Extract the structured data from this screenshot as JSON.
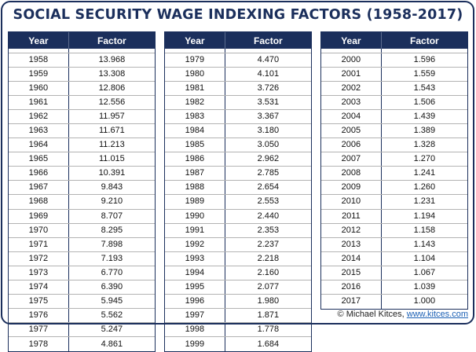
{
  "title": "SOCIAL SECURITY WAGE INDEXING FACTORS (1958-2017)",
  "headers": {
    "year": "Year",
    "factor": "Factor"
  },
  "tables": [
    {
      "rows": [
        {
          "year": "1958",
          "factor": "13.968"
        },
        {
          "year": "1959",
          "factor": "13.308"
        },
        {
          "year": "1960",
          "factor": "12.806"
        },
        {
          "year": "1961",
          "factor": "12.556"
        },
        {
          "year": "1962",
          "factor": "11.957"
        },
        {
          "year": "1963",
          "factor": "11.671"
        },
        {
          "year": "1964",
          "factor": "11.213"
        },
        {
          "year": "1965",
          "factor": "11.015"
        },
        {
          "year": "1966",
          "factor": "10.391"
        },
        {
          "year": "1967",
          "factor": "9.843"
        },
        {
          "year": "1968",
          "factor": "9.210"
        },
        {
          "year": "1969",
          "factor": "8.707"
        },
        {
          "year": "1970",
          "factor": "8.295"
        },
        {
          "year": "1971",
          "factor": "7.898"
        },
        {
          "year": "1972",
          "factor": "7.193"
        },
        {
          "year": "1973",
          "factor": "6.770"
        },
        {
          "year": "1974",
          "factor": "6.390"
        },
        {
          "year": "1975",
          "factor": "5.945"
        },
        {
          "year": "1976",
          "factor": "5.562"
        },
        {
          "year": "1977",
          "factor": "5.247"
        },
        {
          "year": "1978",
          "factor": "4.861"
        }
      ]
    },
    {
      "rows": [
        {
          "year": "1979",
          "factor": "4.470"
        },
        {
          "year": "1980",
          "factor": "4.101"
        },
        {
          "year": "1981",
          "factor": "3.726"
        },
        {
          "year": "1982",
          "factor": "3.531"
        },
        {
          "year": "1983",
          "factor": "3.367"
        },
        {
          "year": "1984",
          "factor": "3.180"
        },
        {
          "year": "1985",
          "factor": "3.050"
        },
        {
          "year": "1986",
          "factor": "2.962"
        },
        {
          "year": "1987",
          "factor": "2.785"
        },
        {
          "year": "1988",
          "factor": "2.654"
        },
        {
          "year": "1989",
          "factor": "2.553"
        },
        {
          "year": "1990",
          "factor": "2.440"
        },
        {
          "year": "1991",
          "factor": "2.353"
        },
        {
          "year": "1992",
          "factor": "2.237"
        },
        {
          "year": "1993",
          "factor": "2.218"
        },
        {
          "year": "1994",
          "factor": "2.160"
        },
        {
          "year": "1995",
          "factor": "2.077"
        },
        {
          "year": "1996",
          "factor": "1.980"
        },
        {
          "year": "1997",
          "factor": "1.871"
        },
        {
          "year": "1998",
          "factor": "1.778"
        },
        {
          "year": "1999",
          "factor": "1.684"
        }
      ]
    },
    {
      "rows": [
        {
          "year": "2000",
          "factor": "1.596"
        },
        {
          "year": "2001",
          "factor": "1.559"
        },
        {
          "year": "2002",
          "factor": "1.543"
        },
        {
          "year": "2003",
          "factor": "1.506"
        },
        {
          "year": "2004",
          "factor": "1.439"
        },
        {
          "year": "2005",
          "factor": "1.389"
        },
        {
          "year": "2006",
          "factor": "1.328"
        },
        {
          "year": "2007",
          "factor": "1.270"
        },
        {
          "year": "2008",
          "factor": "1.241"
        },
        {
          "year": "2009",
          "factor": "1.260"
        },
        {
          "year": "2010",
          "factor": "1.231"
        },
        {
          "year": "2011",
          "factor": "1.194"
        },
        {
          "year": "2012",
          "factor": "1.158"
        },
        {
          "year": "2013",
          "factor": "1.143"
        },
        {
          "year": "2014",
          "factor": "1.104"
        },
        {
          "year": "2015",
          "factor": "1.067"
        },
        {
          "year": "2016",
          "factor": "1.039"
        },
        {
          "year": "2017",
          "factor": "1.000"
        }
      ]
    }
  ],
  "credit": {
    "prefix": "© Michael Kitces, ",
    "link": "www.kitces.com"
  },
  "colors": {
    "navy": "#1b2f5c",
    "link": "#1a5fb4"
  }
}
